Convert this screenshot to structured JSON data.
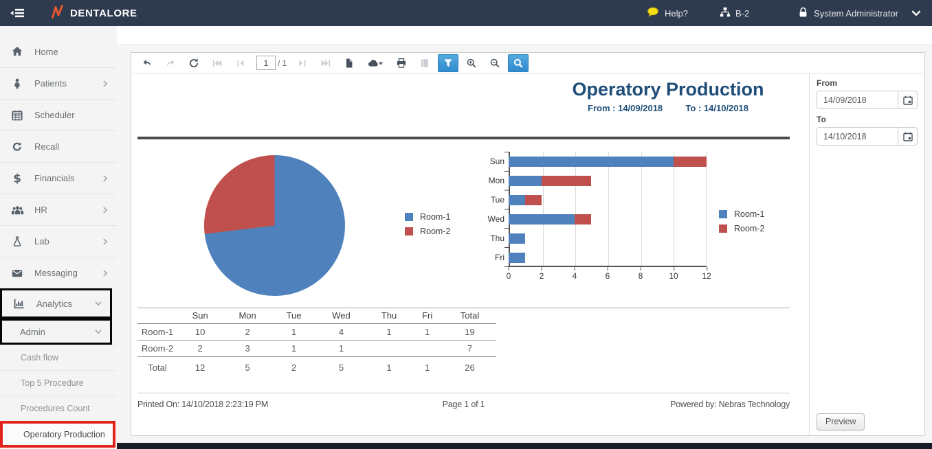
{
  "topbar": {
    "brand": "DENTALORE",
    "help_label": "Help?",
    "branch_label": "B-2",
    "user_label": "System Administrator"
  },
  "sidebar": {
    "items": [
      {
        "label": "Home"
      },
      {
        "label": "Patients"
      },
      {
        "label": "Scheduler"
      },
      {
        "label": "Recall"
      },
      {
        "label": "Financials"
      },
      {
        "label": "HR"
      },
      {
        "label": "Lab"
      },
      {
        "label": "Messaging"
      },
      {
        "label": "Analytics"
      },
      {
        "label": "Admin"
      },
      {
        "label": "Cash flow"
      },
      {
        "label": "Top 5 Procedure"
      },
      {
        "label": "Procedures Count"
      },
      {
        "label": "Operatory Production"
      }
    ]
  },
  "toolbar": {
    "page_number": "1",
    "page_total": "/ 1"
  },
  "report": {
    "title": "Operatory Production",
    "from_label": "From :",
    "from_value": "14/09/2018",
    "to_label": "To :",
    "to_value": "14/10/2018",
    "table": {
      "headers": [
        "",
        "Sun",
        "Mon",
        "Tue",
        "Wed",
        "Thu",
        "Fri",
        "Total"
      ],
      "rows": [
        {
          "label": "Room-1",
          "values": [
            "10",
            "2",
            "1",
            "4",
            "1",
            "1",
            "19"
          ]
        },
        {
          "label": "Room-2",
          "values": [
            "2",
            "3",
            "1",
            "1",
            "",
            "",
            "7"
          ]
        },
        {
          "label": "Total",
          "values": [
            "12",
            "5",
            "2",
            "5",
            "1",
            "1",
            "26"
          ]
        }
      ]
    },
    "footer": {
      "printed": "Printed On: 14/10/2018 2:23:19 PM",
      "page": "Page 1 of 1",
      "powered": "Powered by: Nebras Technology"
    }
  },
  "filters": {
    "from_label": "From",
    "from_value": "14/09/2018",
    "to_label": "To",
    "to_value": "14/10/2018",
    "preview_label": "Preview"
  },
  "colors": {
    "topbar_bg": "#2e3a4e",
    "accent_blue": "#3e96d2",
    "highlight_red": "#e3231b",
    "title_blue": "#1f4e79",
    "room1": "#4f81bd",
    "room2": "#c0504d"
  },
  "chart_data": [
    {
      "type": "pie",
      "labels": [
        "Room-1",
        "Room-2"
      ],
      "values": [
        19,
        7
      ],
      "colors": [
        "#4f81bd",
        "#c0504d"
      ],
      "legend_position": "right"
    },
    {
      "type": "bar",
      "orientation": "horizontal",
      "stacked": true,
      "categories": [
        "Sun",
        "Mon",
        "Tue",
        "Wed",
        "Thu",
        "Fri"
      ],
      "series": [
        {
          "name": "Room-1",
          "color": "#4f81bd",
          "values": [
            10,
            2,
            1,
            4,
            1,
            1
          ]
        },
        {
          "name": "Room-2",
          "color": "#c0504d",
          "values": [
            2,
            3,
            1,
            1,
            0,
            0
          ]
        }
      ],
      "xlim": [
        0,
        12
      ],
      "xticks": [
        0,
        2,
        4,
        6,
        8,
        10,
        12
      ],
      "grid": true,
      "legend_position": "right"
    }
  ]
}
